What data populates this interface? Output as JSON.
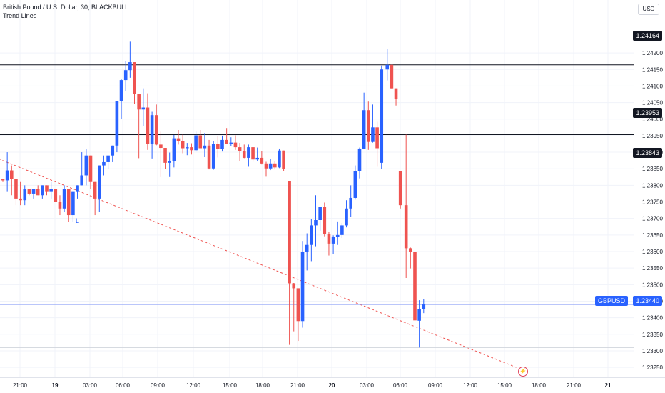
{
  "header": {
    "title": "British Pound / U.S. Dollar, 30, BLACKBULL",
    "indicator": "Trend Lines"
  },
  "currency_button": "USD",
  "annotation_label": "L",
  "event_icon": "lightning-icon",
  "colors": {
    "up": "#2962ff",
    "down": "#ef5350",
    "trend": "#ef5350",
    "level": "#131722",
    "last_price": "#2962ff",
    "grid": "#f0f3fa"
  },
  "price_tags": {
    "level_1": "1.24164",
    "level_2": "1.23953",
    "level_3": "1.23843",
    "last_symbol": "GBPUSD",
    "last_price": "1.23440"
  },
  "chart_data": {
    "type": "candlestick",
    "symbol": "GBPUSD",
    "timeframe": "30",
    "y_ticks": [
      "1.24200",
      "1.24150",
      "1.24100",
      "1.24050",
      "1.24000",
      "1.23950",
      "1.23900",
      "1.23850",
      "1.23800",
      "1.23750",
      "1.23700",
      "1.23650",
      "1.23600",
      "1.23550",
      "1.23500",
      "1.23450",
      "1.23400",
      "1.23350",
      "1.23300",
      "1.23250"
    ],
    "ylim": [
      1.2322,
      1.2436
    ],
    "x_ticks": [
      "21:00",
      "19",
      "03:00",
      "06:00",
      "09:00",
      "12:00",
      "15:00",
      "18:00",
      "21:00",
      "20",
      "03:00",
      "06:00",
      "09:00",
      "12:00",
      "15:00",
      "18:00",
      "21:00",
      "21"
    ],
    "x_ticks_bold": [
      "19",
      "20",
      "21"
    ],
    "horizontal_levels": [
      1.24164,
      1.23953,
      1.23843
    ],
    "last_price": 1.2344,
    "last_price_line": 1.2344,
    "low_marker_line": 1.2331,
    "trend_line": {
      "from": {
        "bar": -1,
        "price": 1.2388
      },
      "to": {
        "bar": 117,
        "price": 1.2325
      },
      "style": "dashed"
    },
    "candles": [
      {
        "o": 1.23818,
        "h": 1.2382,
        "l": 1.2381,
        "c": 1.23815
      },
      {
        "o": 1.23815,
        "h": 1.239,
        "l": 1.2378,
        "c": 1.23845
      },
      {
        "o": 1.23845,
        "h": 1.2386,
        "l": 1.2377,
        "c": 1.2382
      },
      {
        "o": 1.2382,
        "h": 1.2382,
        "l": 1.2374,
        "c": 1.2376
      },
      {
        "o": 1.2376,
        "h": 1.2381,
        "l": 1.2374,
        "c": 1.23755
      },
      {
        "o": 1.23755,
        "h": 1.238,
        "l": 1.2374,
        "c": 1.2379
      },
      {
        "o": 1.2379,
        "h": 1.2379,
        "l": 1.2377,
        "c": 1.23775
      },
      {
        "o": 1.23775,
        "h": 1.2379,
        "l": 1.2376,
        "c": 1.2379
      },
      {
        "o": 1.2379,
        "h": 1.238,
        "l": 1.2377,
        "c": 1.2377
      },
      {
        "o": 1.2377,
        "h": 1.238,
        "l": 1.2376,
        "c": 1.238
      },
      {
        "o": 1.238,
        "h": 1.238,
        "l": 1.2377,
        "c": 1.2378
      },
      {
        "o": 1.2378,
        "h": 1.2381,
        "l": 1.2376,
        "c": 1.2379
      },
      {
        "o": 1.2379,
        "h": 1.2379,
        "l": 1.2375,
        "c": 1.2375
      },
      {
        "o": 1.2375,
        "h": 1.2377,
        "l": 1.2371,
        "c": 1.2373
      },
      {
        "o": 1.2373,
        "h": 1.238,
        "l": 1.2372,
        "c": 1.2379
      },
      {
        "o": 1.2379,
        "h": 1.2379,
        "l": 1.2369,
        "c": 1.2371
      },
      {
        "o": 1.2371,
        "h": 1.2378,
        "l": 1.2369,
        "c": 1.2378
      },
      {
        "o": 1.2378,
        "h": 1.238,
        "l": 1.2376,
        "c": 1.238
      },
      {
        "o": 1.238,
        "h": 1.239,
        "l": 1.238,
        "c": 1.2383
      },
      {
        "o": 1.2383,
        "h": 1.2391,
        "l": 1.238,
        "c": 1.2389
      },
      {
        "o": 1.2389,
        "h": 1.2389,
        "l": 1.2379,
        "c": 1.2381
      },
      {
        "o": 1.2381,
        "h": 1.2381,
        "l": 1.2371,
        "c": 1.2376
      },
      {
        "o": 1.2376,
        "h": 1.2386,
        "l": 1.2372,
        "c": 1.2386
      },
      {
        "o": 1.2386,
        "h": 1.2389,
        "l": 1.2383,
        "c": 1.2387
      },
      {
        "o": 1.2387,
        "h": 1.2389,
        "l": 1.2385,
        "c": 1.2389
      },
      {
        "o": 1.2389,
        "h": 1.2392,
        "l": 1.2387,
        "c": 1.2392
      },
      {
        "o": 1.2392,
        "h": 1.2405,
        "l": 1.239,
        "c": 1.24055
      },
      {
        "o": 1.24055,
        "h": 1.2412,
        "l": 1.24,
        "c": 1.24118
      },
      {
        "o": 1.24118,
        "h": 1.24175,
        "l": 1.24085,
        "c": 1.24148
      },
      {
        "o": 1.24148,
        "h": 1.24234,
        "l": 1.24125,
        "c": 1.24172
      },
      {
        "o": 1.24172,
        "h": 1.24172,
        "l": 1.24045,
        "c": 1.24075
      },
      {
        "o": 1.24075,
        "h": 1.24077,
        "l": 1.23882,
        "c": 1.24029
      },
      {
        "o": 1.24029,
        "h": 1.24093,
        "l": 1.23978,
        "c": 1.24035
      },
      {
        "o": 1.24035,
        "h": 1.24078,
        "l": 1.23907,
        "c": 1.23926
      },
      {
        "o": 1.23926,
        "h": 1.24022,
        "l": 1.23881,
        "c": 1.24012
      },
      {
        "o": 1.24012,
        "h": 1.24044,
        "l": 1.23921,
        "c": 1.23923
      },
      {
        "o": 1.23923,
        "h": 1.23962,
        "l": 1.23825,
        "c": 1.23913
      },
      {
        "o": 1.23913,
        "h": 1.23913,
        "l": 1.23849,
        "c": 1.23868
      },
      {
        "o": 1.23868,
        "h": 1.23899,
        "l": 1.23825,
        "c": 1.23873
      },
      {
        "o": 1.23873,
        "h": 1.23952,
        "l": 1.23854,
        "c": 1.23942
      },
      {
        "o": 1.23942,
        "h": 1.23967,
        "l": 1.23923,
        "c": 1.23933
      },
      {
        "o": 1.23933,
        "h": 1.23953,
        "l": 1.23897,
        "c": 1.23912
      },
      {
        "o": 1.23912,
        "h": 1.23928,
        "l": 1.23891,
        "c": 1.23915
      },
      {
        "o": 1.23915,
        "h": 1.23927,
        "l": 1.23893,
        "c": 1.23906
      },
      {
        "o": 1.23906,
        "h": 1.23962,
        "l": 1.23902,
        "c": 1.23951
      },
      {
        "o": 1.23951,
        "h": 1.23967,
        "l": 1.23912,
        "c": 1.23912
      },
      {
        "o": 1.23912,
        "h": 1.23958,
        "l": 1.23885,
        "c": 1.2392
      },
      {
        "o": 1.2392,
        "h": 1.23937,
        "l": 1.23848,
        "c": 1.23851
      },
      {
        "o": 1.23851,
        "h": 1.23934,
        "l": 1.23847,
        "c": 1.23925
      },
      {
        "o": 1.23925,
        "h": 1.23948,
        "l": 1.23884,
        "c": 1.2391
      },
      {
        "o": 1.2391,
        "h": 1.2395,
        "l": 1.23902,
        "c": 1.23937
      },
      {
        "o": 1.23937,
        "h": 1.23973,
        "l": 1.23924,
        "c": 1.23926
      },
      {
        "o": 1.23926,
        "h": 1.23945,
        "l": 1.23919,
        "c": 1.23929
      },
      {
        "o": 1.23929,
        "h": 1.23951,
        "l": 1.23907,
        "c": 1.23915
      },
      {
        "o": 1.23915,
        "h": 1.23928,
        "l": 1.23874,
        "c": 1.23904
      },
      {
        "o": 1.23904,
        "h": 1.23923,
        "l": 1.23882,
        "c": 1.23883
      },
      {
        "o": 1.23883,
        "h": 1.23923,
        "l": 1.23856,
        "c": 1.23915
      },
      {
        "o": 1.23915,
        "h": 1.23915,
        "l": 1.23871,
        "c": 1.23878
      },
      {
        "o": 1.23878,
        "h": 1.23914,
        "l": 1.23872,
        "c": 1.23883
      },
      {
        "o": 1.23883,
        "h": 1.23904,
        "l": 1.23863,
        "c": 1.23866
      },
      {
        "o": 1.23866,
        "h": 1.23871,
        "l": 1.23826,
        "c": 1.23851
      },
      {
        "o": 1.23851,
        "h": 1.2388,
        "l": 1.23846,
        "c": 1.23866
      },
      {
        "o": 1.23866,
        "h": 1.23874,
        "l": 1.23848,
        "c": 1.23854
      },
      {
        "o": 1.23854,
        "h": 1.23911,
        "l": 1.23852,
        "c": 1.23905
      },
      {
        "o": 1.23905,
        "h": 1.23905,
        "l": 1.23843,
        "c": 1.2385
      },
      {
        "o": 1.23812,
        "h": 1.23812,
        "l": 1.23318,
        "c": 1.23504
      },
      {
        "o": 1.23504,
        "h": 1.23505,
        "l": 1.23359,
        "c": 1.23489
      },
      {
        "o": 1.23489,
        "h": 1.23489,
        "l": 1.2333,
        "c": 1.2339
      },
      {
        "o": 1.2339,
        "h": 1.23632,
        "l": 1.2337,
        "c": 1.23599
      },
      {
        "o": 1.23599,
        "h": 1.23655,
        "l": 1.23543,
        "c": 1.2362
      },
      {
        "o": 1.2362,
        "h": 1.23698,
        "l": 1.23571,
        "c": 1.23679
      },
      {
        "o": 1.23679,
        "h": 1.2377,
        "l": 1.23616,
        "c": 1.23695
      },
      {
        "o": 1.23695,
        "h": 1.23736,
        "l": 1.23663,
        "c": 1.23735
      },
      {
        "o": 1.23735,
        "h": 1.23748,
        "l": 1.23646,
        "c": 1.23652
      },
      {
        "o": 1.23652,
        "h": 1.23659,
        "l": 1.23588,
        "c": 1.23624
      },
      {
        "o": 1.23624,
        "h": 1.23649,
        "l": 1.23592,
        "c": 1.23645
      },
      {
        "o": 1.23645,
        "h": 1.23691,
        "l": 1.2362,
        "c": 1.2365
      },
      {
        "o": 1.2365,
        "h": 1.23686,
        "l": 1.23641,
        "c": 1.23679
      },
      {
        "o": 1.23679,
        "h": 1.23755,
        "l": 1.23673,
        "c": 1.2373
      },
      {
        "o": 1.2373,
        "h": 1.238,
        "l": 1.23705,
        "c": 1.23762
      },
      {
        "o": 1.23762,
        "h": 1.2386,
        "l": 1.23757,
        "c": 1.23843
      },
      {
        "o": 1.23843,
        "h": 1.23914,
        "l": 1.23821,
        "c": 1.23911
      },
      {
        "o": 1.23911,
        "h": 1.2408,
        "l": 1.2391,
        "c": 1.24027
      },
      {
        "o": 1.24027,
        "h": 1.24053,
        "l": 1.23907,
        "c": 1.23931
      },
      {
        "o": 1.23931,
        "h": 1.24044,
        "l": 1.23929,
        "c": 1.23975
      },
      {
        "o": 1.23975,
        "h": 1.23992,
        "l": 1.23856,
        "c": 1.23912
      },
      {
        "o": 1.23868,
        "h": 1.24162,
        "l": 1.23849,
        "c": 1.2415
      },
      {
        "o": 1.2415,
        "h": 1.24213,
        "l": 1.24117,
        "c": 1.24164
      },
      {
        "o": 1.24164,
        "h": 1.24164,
        "l": 1.24093,
        "c": 1.24093
      },
      {
        "o": 1.24093,
        "h": 1.24093,
        "l": 1.24041,
        "c": 1.24061
      },
      {
        "o": 1.23843,
        "h": 1.23843,
        "l": 1.2373,
        "c": 1.2374
      },
      {
        "o": 1.2374,
        "h": 1.23953,
        "l": 1.2352,
        "c": 1.2361
      },
      {
        "o": 1.2361,
        "h": 1.23612,
        "l": 1.23549,
        "c": 1.236
      },
      {
        "o": 1.236,
        "h": 1.23647,
        "l": 1.23393,
        "c": 1.23392
      },
      {
        "o": 1.23391,
        "h": 1.23453,
        "l": 1.2331,
        "c": 1.23427
      },
      {
        "o": 1.23427,
        "h": 1.23456,
        "l": 1.23414,
        "c": 1.2344
      }
    ]
  }
}
